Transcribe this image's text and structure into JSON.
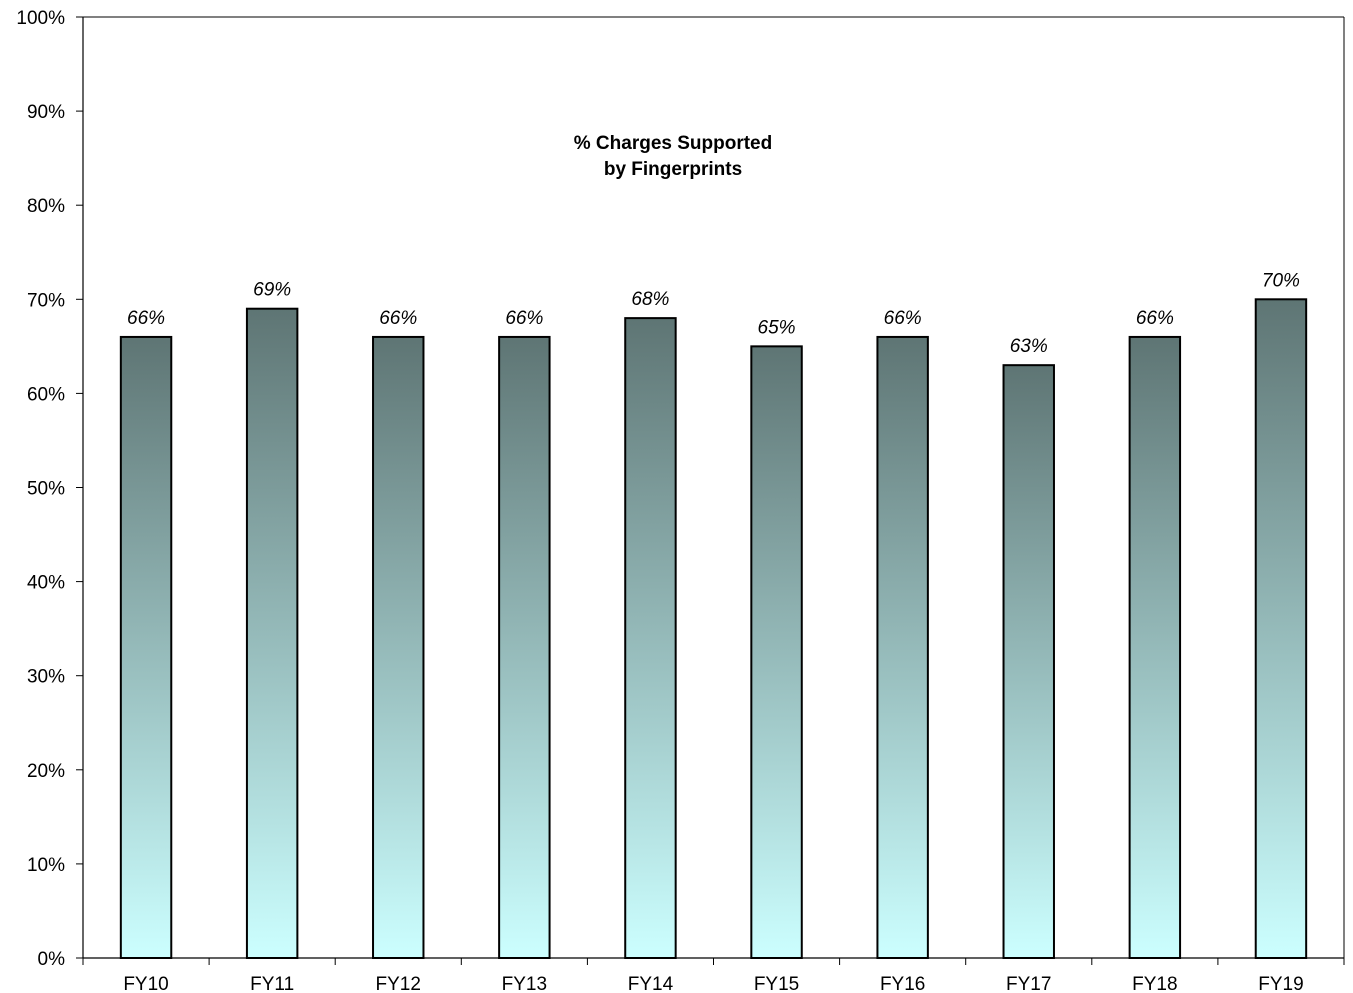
{
  "chart_data": {
    "type": "bar",
    "title": "% Charges Supported by  Fingerprints",
    "title_lines": [
      "% Charges Supported",
      "by  Fingerprints"
    ],
    "xlabel": "",
    "ylabel": "",
    "categories": [
      "FY10",
      "FY11",
      "FY12",
      "FY13",
      "FY14",
      "FY15",
      "FY16",
      "FY17",
      "FY18",
      "FY19"
    ],
    "values": [
      66,
      69,
      66,
      66,
      68,
      65,
      66,
      63,
      66,
      70
    ],
    "value_labels": [
      "66%",
      "69%",
      "66%",
      "66%",
      "68%",
      "65%",
      "66%",
      "63%",
      "66%",
      "70%"
    ],
    "ylim": [
      0,
      100
    ],
    "y_ticks": [
      0,
      10,
      20,
      30,
      40,
      50,
      60,
      70,
      80,
      90,
      100
    ],
    "y_tick_labels": [
      "0%",
      "10%",
      "20%",
      "30%",
      "40%",
      "50%",
      "60%",
      "70%",
      "80%",
      "90%",
      "100%"
    ],
    "grid": false,
    "legend": "none",
    "colors": {
      "bar_top": "#5e7574",
      "bar_bottom": "#ccffff",
      "bar_outline": "#000000",
      "axis": "#000000"
    }
  }
}
